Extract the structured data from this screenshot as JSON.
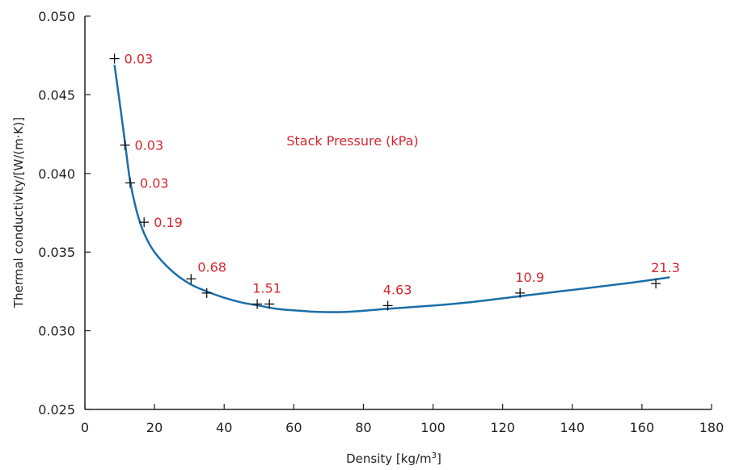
{
  "chart_data": {
    "type": "scatter",
    "xlabel": "Density [kg/m",
    "xlabel_sup": "3",
    "xlabel_end": "]",
    "ylabel": "Thermal conductivity/[W/(m·K)]",
    "annotation": "Stack Pressure (kPa)",
    "xlim": [
      0,
      180
    ],
    "ylim": [
      0.025,
      0.05
    ],
    "xticks": [
      0,
      20,
      40,
      60,
      80,
      100,
      120,
      140,
      160,
      180
    ],
    "yticks": [
      "0.025",
      "0.030",
      "0.035",
      "0.040",
      "0.045",
      "0.050"
    ],
    "grid": false,
    "colors": {
      "curve": "#1a6fa8",
      "labels": "#d6262f",
      "markers": "#111111",
      "axes": "#222222"
    },
    "points": [
      {
        "x": 8.5,
        "y": 0.0473,
        "label": "0.03"
      },
      {
        "x": 11.5,
        "y": 0.0418,
        "label": "0.03"
      },
      {
        "x": 13.0,
        "y": 0.0394,
        "label": "0.03"
      },
      {
        "x": 17.0,
        "y": 0.0369,
        "label": "0.19"
      },
      {
        "x": 30.5,
        "y": 0.0333,
        "label": "0.68"
      },
      {
        "x": 35.0,
        "y": 0.0324,
        "label": ""
      },
      {
        "x": 49.5,
        "y": 0.0317,
        "label": "1.51"
      },
      {
        "x": 53.0,
        "y": 0.0317,
        "label": ""
      },
      {
        "x": 87.0,
        "y": 0.0316,
        "label": "4.63"
      },
      {
        "x": 125.0,
        "y": 0.0324,
        "label": "10.9"
      },
      {
        "x": 164.0,
        "y": 0.033,
        "label": "21.3"
      }
    ],
    "fit_curve": {
      "x": [
        8.5,
        10,
        11.5,
        13,
        15,
        17,
        20,
        25,
        30,
        35,
        40,
        45,
        50,
        55,
        60,
        67,
        75,
        87,
        100,
        110,
        125,
        140,
        155,
        168
      ],
      "y": [
        0.0469,
        0.0445,
        0.042,
        0.0395,
        0.0375,
        0.0362,
        0.035,
        0.0338,
        0.033,
        0.0325,
        0.0321,
        0.0318,
        0.0316,
        0.0314,
        0.0313,
        0.0312,
        0.0312,
        0.0314,
        0.0316,
        0.0318,
        0.0322,
        0.0326,
        0.033,
        0.0334
      ]
    }
  }
}
